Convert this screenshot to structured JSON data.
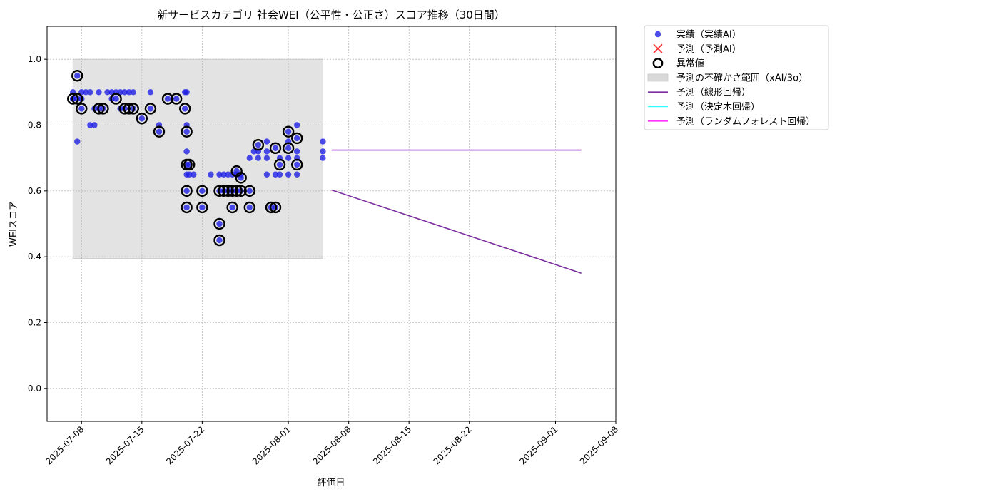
{
  "chart_data": {
    "type": "scatter",
    "title": "新サービスカテゴリ 社会WEI（公平性・公正さ）スコア推移（30日間）",
    "xlabel": "評価日",
    "ylabel": "WEIスコア",
    "x_type": "date",
    "xlim": [
      "2025-07-04",
      "2025-09-08"
    ],
    "ylim": [
      -0.1,
      1.1
    ],
    "x_ticks": [
      "2025-07-08",
      "2025-07-15",
      "2025-07-22",
      "2025-08-01",
      "2025-08-08",
      "2025-08-15",
      "2025-08-22",
      "2025-09-01",
      "2025-09-08"
    ],
    "y_ticks": [
      "0.0",
      "0.2",
      "0.4",
      "0.6",
      "0.8",
      "1.0"
    ],
    "grid": true,
    "legend_position": "outside-top-right",
    "colors": {
      "actual": "#1f1fe6",
      "predicted_marker": "#ff3333",
      "anomaly_edge": "#000000",
      "uncertainty_band": "#d9d9d9",
      "linear": "#7b2d9f",
      "tree": "#33ffff",
      "rf": "#ff33ff",
      "flat_line": "#9b30d0"
    },
    "legend": [
      {
        "key": "actual",
        "label": "実績（実績AI）"
      },
      {
        "key": "predicted",
        "label": "予測（予測AI）"
      },
      {
        "key": "anomaly",
        "label": "異常値"
      },
      {
        "key": "band",
        "label": "予測の不確かさ範囲（xAI/3σ）"
      },
      {
        "key": "linear",
        "label": "予測（線形回帰）"
      },
      {
        "key": "tree",
        "label": "予測（決定木回帰）"
      },
      {
        "key": "rf",
        "label": "予測（ランダムフォレスト回帰）"
      }
    ],
    "uncertainty_band": {
      "x_start": "2025-07-07",
      "x_end": "2025-08-05",
      "y_low": 0.395,
      "y_high": 1.0
    },
    "actual_points": [
      [
        "2025-07-07",
        0.9
      ],
      [
        "2025-07-07",
        0.88
      ],
      [
        "2025-07-07",
        0.88
      ],
      [
        "2025-07-07.5",
        0.95
      ],
      [
        "2025-07-07.5",
        0.75
      ],
      [
        "2025-07-07.5",
        0.88
      ],
      [
        "2025-07-08",
        0.9
      ],
      [
        "2025-07-08",
        0.88
      ],
      [
        "2025-07-08",
        0.85
      ],
      [
        "2025-07-08.5",
        0.9
      ],
      [
        "2025-07-09",
        0.9
      ],
      [
        "2025-07-09",
        0.8
      ],
      [
        "2025-07-09.5",
        0.8
      ],
      [
        "2025-07-09.5",
        0.85
      ],
      [
        "2025-07-10",
        0.9
      ],
      [
        "2025-07-10",
        0.85
      ],
      [
        "2025-07-10.5",
        0.85
      ],
      [
        "2025-07-11",
        0.9
      ],
      [
        "2025-07-11.5",
        0.9
      ],
      [
        "2025-07-11.5",
        0.88
      ],
      [
        "2025-07-12",
        0.9
      ],
      [
        "2025-07-12",
        0.88
      ],
      [
        "2025-07-12.5",
        0.9
      ],
      [
        "2025-07-12.5",
        0.85
      ],
      [
        "2025-07-13",
        0.9
      ],
      [
        "2025-07-13",
        0.85
      ],
      [
        "2025-07-13.5",
        0.9
      ],
      [
        "2025-07-14",
        0.9
      ],
      [
        "2025-07-14",
        0.85
      ],
      [
        "2025-07-15",
        0.82
      ],
      [
        "2025-07-16",
        0.9
      ],
      [
        "2025-07-16",
        0.85
      ],
      [
        "2025-07-17",
        0.8
      ],
      [
        "2025-07-17",
        0.78
      ],
      [
        "2025-07-18",
        0.88
      ],
      [
        "2025-07-19",
        0.88
      ],
      [
        "2025-07-20",
        0.9
      ],
      [
        "2025-07-20",
        0.85
      ],
      [
        "2025-07-20.2",
        0.9
      ],
      [
        "2025-07-20.2",
        0.8
      ],
      [
        "2025-07-20.2",
        0.78
      ],
      [
        "2025-07-20.2",
        0.72
      ],
      [
        "2025-07-20.2",
        0.68
      ],
      [
        "2025-07-20.2",
        0.65
      ],
      [
        "2025-07-20.2",
        0.6
      ],
      [
        "2025-07-20.2",
        0.55
      ],
      [
        "2025-07-20.5",
        0.68
      ],
      [
        "2025-07-20.5",
        0.65
      ],
      [
        "2025-07-21",
        0.65
      ],
      [
        "2025-07-22",
        0.6
      ],
      [
        "2025-07-22",
        0.55
      ],
      [
        "2025-07-23",
        0.65
      ],
      [
        "2025-07-24",
        0.65
      ],
      [
        "2025-07-24",
        0.6
      ],
      [
        "2025-07-24",
        0.5
      ],
      [
        "2025-07-24",
        0.45
      ],
      [
        "2025-07-24.5",
        0.65
      ],
      [
        "2025-07-24.5",
        0.6
      ],
      [
        "2025-07-25",
        0.65
      ],
      [
        "2025-07-25",
        0.6
      ],
      [
        "2025-07-25.5",
        0.65
      ],
      [
        "2025-07-25.5",
        0.6
      ],
      [
        "2025-07-25.5",
        0.55
      ],
      [
        "2025-07-26",
        0.66
      ],
      [
        "2025-07-26",
        0.65
      ],
      [
        "2025-07-26",
        0.6
      ],
      [
        "2025-07-26.5",
        0.65
      ],
      [
        "2025-07-26.5",
        0.64
      ],
      [
        "2025-07-26.5",
        0.6
      ],
      [
        "2025-07-27.5",
        0.7
      ],
      [
        "2025-07-27.5",
        0.6
      ],
      [
        "2025-07-27.5",
        0.55
      ],
      [
        "2025-07-28",
        0.72
      ],
      [
        "2025-07-28.5",
        0.74
      ],
      [
        "2025-07-28.5",
        0.72
      ],
      [
        "2025-07-28.5",
        0.7
      ],
      [
        "2025-07-29.5",
        0.75
      ],
      [
        "2025-07-29.5",
        0.72
      ],
      [
        "2025-07-29.5",
        0.7
      ],
      [
        "2025-07-29.5",
        0.65
      ],
      [
        "2025-07-30",
        0.55
      ],
      [
        "2025-07-30.5",
        0.73
      ],
      [
        "2025-07-30.5",
        0.65
      ],
      [
        "2025-07-30.5",
        0.55
      ],
      [
        "2025-07-31",
        0.7
      ],
      [
        "2025-07-31",
        0.68
      ],
      [
        "2025-07-31",
        0.65
      ],
      [
        "2025-08-01",
        0.78
      ],
      [
        "2025-08-01",
        0.75
      ],
      [
        "2025-08-01",
        0.73
      ],
      [
        "2025-08-01",
        0.7
      ],
      [
        "2025-08-01",
        0.65
      ],
      [
        "2025-08-02",
        0.8
      ],
      [
        "2025-08-02",
        0.76
      ],
      [
        "2025-08-02",
        0.72
      ],
      [
        "2025-08-02",
        0.7
      ],
      [
        "2025-08-02",
        0.68
      ],
      [
        "2025-08-02",
        0.65
      ],
      [
        "2025-08-05",
        0.75
      ],
      [
        "2025-08-05",
        0.72
      ],
      [
        "2025-08-05",
        0.7
      ]
    ],
    "anomalies": [
      [
        "2025-07-07",
        0.88
      ],
      [
        "2025-07-07.5",
        0.95
      ],
      [
        "2025-07-07.5",
        0.88
      ],
      [
        "2025-07-08",
        0.85
      ],
      [
        "2025-07-10",
        0.85
      ],
      [
        "2025-07-10.5",
        0.85
      ],
      [
        "2025-07-12",
        0.88
      ],
      [
        "2025-07-13",
        0.85
      ],
      [
        "2025-07-13.5",
        0.85
      ],
      [
        "2025-07-14",
        0.85
      ],
      [
        "2025-07-15",
        0.82
      ],
      [
        "2025-07-16",
        0.85
      ],
      [
        "2025-07-17",
        0.78
      ],
      [
        "2025-07-18",
        0.88
      ],
      [
        "2025-07-19",
        0.88
      ],
      [
        "2025-07-20",
        0.85
      ],
      [
        "2025-07-20.2",
        0.78
      ],
      [
        "2025-07-20.2",
        0.68
      ],
      [
        "2025-07-20.2",
        0.6
      ],
      [
        "2025-07-20.2",
        0.55
      ],
      [
        "2025-07-20.5",
        0.68
      ],
      [
        "2025-07-22",
        0.6
      ],
      [
        "2025-07-22",
        0.55
      ],
      [
        "2025-07-24",
        0.6
      ],
      [
        "2025-07-24",
        0.5
      ],
      [
        "2025-07-24",
        0.45
      ],
      [
        "2025-07-24.5",
        0.6
      ],
      [
        "2025-07-25",
        0.6
      ],
      [
        "2025-07-25.5",
        0.6
      ],
      [
        "2025-07-25.5",
        0.55
      ],
      [
        "2025-07-26",
        0.66
      ],
      [
        "2025-07-26",
        0.6
      ],
      [
        "2025-07-26.5",
        0.64
      ],
      [
        "2025-07-26.5",
        0.6
      ],
      [
        "2025-07-27.5",
        0.6
      ],
      [
        "2025-07-27.5",
        0.55
      ],
      [
        "2025-07-28.5",
        0.74
      ],
      [
        "2025-07-30",
        0.55
      ],
      [
        "2025-07-30.5",
        0.73
      ],
      [
        "2025-07-30.5",
        0.55
      ],
      [
        "2025-07-31",
        0.68
      ],
      [
        "2025-08-01",
        0.78
      ],
      [
        "2025-08-01",
        0.73
      ],
      [
        "2025-08-02",
        0.76
      ],
      [
        "2025-08-02",
        0.68
      ]
    ],
    "forecast_lines": [
      {
        "key": "linear",
        "x_start": "2025-08-06",
        "x_end": "2025-09-04",
        "y_start": 0.603,
        "y_end": 0.35
      },
      {
        "key": "flat_line",
        "x_start": "2025-08-06",
        "x_end": "2025-09-04",
        "y_start": 0.724,
        "y_end": 0.724
      }
    ]
  }
}
